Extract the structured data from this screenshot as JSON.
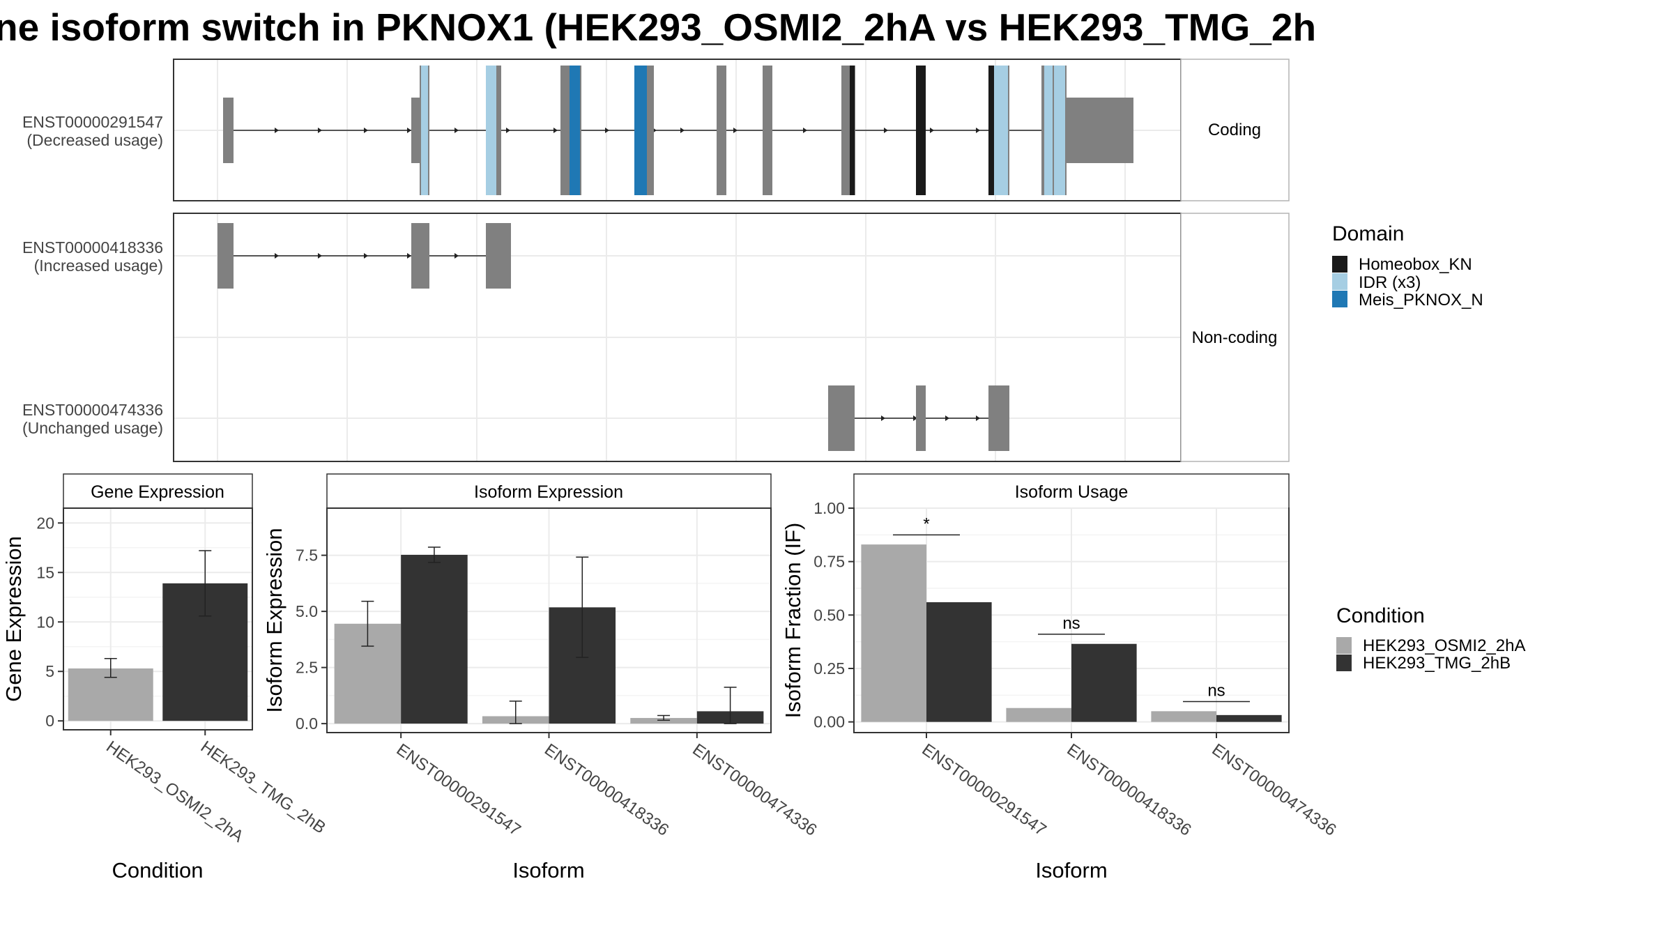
{
  "figure": {
    "title": "ne isoform switch in PKNOX1 (HEK293_OSMI2_2hA vs HEK293_TMG_2h"
  },
  "colors": {
    "homeobox": "#1a1a1a",
    "idr": "#a6cee3",
    "meis": "#1f78b4",
    "exon": "#808080",
    "cond_a": "#a9a9a9",
    "cond_b": "#333333"
  },
  "chart_data": [
    {
      "type": "gene-structure",
      "panels": [
        {
          "label": "Coding",
          "isoforms": [
            {
              "name": "ENST00000291547",
              "usage": "(Decreased usage)"
            }
          ]
        },
        {
          "label": "Non-coding",
          "isoforms": [
            {
              "name": "ENST00000418336",
              "usage": "(Increased usage)"
            },
            {
              "name": "ENST00000474336",
              "usage": "(Unchanged usage)"
            }
          ]
        }
      ],
      "legend": {
        "title": "Domain",
        "entries": [
          "Homeobox_KN",
          "IDR (x3)",
          "Meis_PKNOX_N"
        ]
      }
    },
    {
      "type": "bar",
      "title": "Gene Expression",
      "xlabel": "Condition",
      "ylabel": "Gene Expression",
      "categories": [
        "HEK293_OSMI2_2hA",
        "HEK293_TMG_2hB"
      ],
      "values": [
        5.3,
        13.9
      ],
      "err_low": [
        4.4,
        10.6
      ],
      "err_high": [
        6.3,
        17.2
      ],
      "ylim": [
        -0.9,
        21.5
      ],
      "yticks": [
        "0",
        "5",
        "10",
        "15",
        "20"
      ]
    },
    {
      "type": "bar",
      "title": "Isoform Expression",
      "xlabel": "Isoform",
      "ylabel": "Isoform Expression",
      "categories": [
        "ENST00000291547",
        "ENST00000418336",
        "ENST00000474336"
      ],
      "series": [
        {
          "values": [
            4.45,
            0.33,
            0.25
          ],
          "err_low": [
            3.45,
            0.0,
            0.15
          ],
          "err_high": [
            5.45,
            1.0,
            0.36
          ]
        },
        {
          "values": [
            7.52,
            5.18,
            0.55
          ],
          "err_low": [
            7.18,
            2.95,
            0.0
          ],
          "err_high": [
            7.86,
            7.42,
            1.62
          ]
        }
      ],
      "ylim": [
        -0.4,
        9.6
      ],
      "yticks": [
        "0.0",
        "2.5",
        "5.0",
        "7.5"
      ]
    },
    {
      "type": "bar",
      "title": "Isoform Usage",
      "xlabel": "Isoform",
      "ylabel": "Isoform Fraction (IF)",
      "categories": [
        "ENST00000291547",
        "ENST00000418336",
        "ENST00000474336"
      ],
      "series": [
        {
          "values": [
            0.83,
            0.065,
            0.05
          ]
        },
        {
          "values": [
            0.56,
            0.365,
            0.032
          ]
        }
      ],
      "significance": [
        "*",
        "ns",
        "ns"
      ],
      "ylim": [
        -0.05,
        1.0
      ],
      "yticks": [
        "0.00",
        "0.25",
        "0.50",
        "0.75",
        "1.00"
      ]
    }
  ],
  "condition_legend": {
    "title": "Condition",
    "entries": [
      "HEK293_OSMI2_2hA",
      "HEK293_TMG_2hB"
    ]
  }
}
